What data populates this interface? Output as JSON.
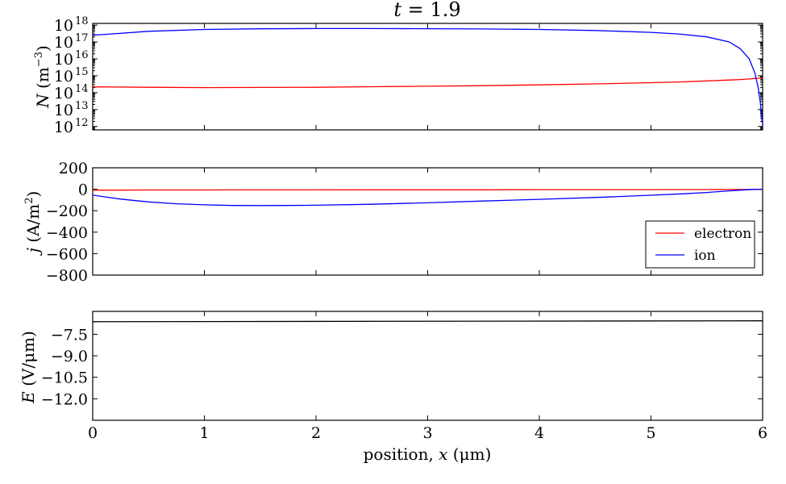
{
  "title": {
    "var": "t",
    "eq": " = ",
    "val": "1.9"
  },
  "xaxis": {
    "label_pre": "position, ",
    "label_var": "x",
    "label_unit": " (μm)",
    "ticks": [
      0,
      1,
      2,
      3,
      4,
      5,
      6
    ],
    "tick_labels": [
      "0",
      "1",
      "2",
      "3",
      "4",
      "5",
      "6"
    ],
    "range": [
      0,
      6
    ]
  },
  "panels": {
    "density": {
      "ylabel_var": "N",
      "ylabel_unit": " (m",
      "ylabel_exp": "−3",
      "ylabel_close": ")",
      "scale": "log",
      "ylim_log10": [
        11.8,
        18.1
      ],
      "tick_exps": [
        12,
        13,
        14,
        15,
        16,
        17,
        18
      ],
      "tick_base": "10",
      "tick_exp_labels": [
        "12",
        "13",
        "14",
        "15",
        "16",
        "17",
        "18"
      ]
    },
    "current": {
      "ylabel_var": "j",
      "ylabel_unit": " (A/m",
      "ylabel_exp": "2",
      "ylabel_close": ")",
      "ylim": [
        -800,
        200
      ],
      "ticks": [
        200,
        0,
        -200,
        -400,
        -600,
        -800
      ],
      "tick_labels": [
        "200",
        "0",
        "−200",
        "−400",
        "−600",
        "−800"
      ],
      "legend": {
        "position": "lower-right",
        "entries": [
          "electron",
          "ion"
        ]
      }
    },
    "field": {
      "ylabel_var": "E",
      "ylabel_unit": " (V/μm)",
      "ylim": [
        -13.5,
        -5.9
      ],
      "ticks": [
        -7.5,
        -9.0,
        -10.5,
        -12.0
      ],
      "tick_labels": [
        "−7.5",
        "−9.0",
        "−10.5",
        "−12.0"
      ]
    }
  },
  "colors": {
    "electron": "#ff0000",
    "ion": "#0000ff",
    "field": "#000000"
  },
  "chart_data": [
    {
      "type": "line",
      "yscale": "log",
      "ylabel": "N (m^-3)",
      "xlim": [
        0,
        6
      ],
      "x": [
        0,
        0.5,
        1,
        1.5,
        2,
        2.5,
        3,
        3.5,
        4,
        4.5,
        5,
        5.25,
        5.5,
        5.7,
        5.8,
        5.88,
        5.93,
        5.96,
        5.98,
        5.99,
        6.0
      ],
      "series": [
        {
          "name": "electron",
          "color": "#ff0000",
          "values": [
            220000000000000.0,
            210000000000000.0,
            200000000000000.0,
            205000000000000.0,
            210000000000000.0,
            225000000000000.0,
            240000000000000.0,
            260000000000000.0,
            290000000000000.0,
            330000000000000.0,
            390000000000000.0,
            430000000000000.0,
            500000000000000.0,
            560000000000000.0,
            600000000000000.0,
            650000000000000.0,
            690000000000000.0,
            710000000000000.0,
            730000000000000.0,
            740000000000000.0,
            750000000000000.0
          ]
        },
        {
          "name": "ion",
          "color": "#0000ff",
          "values": [
            2.5e+17,
            4.3e+17,
            5.5e+17,
            6e+17,
            6.2e+17,
            6.2e+17,
            6.1e+17,
            5.9e+17,
            5.5e+17,
            4.8e+17,
            3.7e+17,
            3e+17,
            2e+17,
            1e+17,
            4e+16,
            1e+16,
            1500000000000000.0,
            200000000000000.0,
            25000000000000.0,
            5000000000000.0,
            1200000000000.0
          ]
        }
      ]
    },
    {
      "type": "line",
      "ylabel": "j (A/m^2)",
      "xlim": [
        0,
        6
      ],
      "ylim": [
        -800,
        200
      ],
      "x": [
        0,
        0.25,
        0.5,
        0.75,
        1,
        1.25,
        1.5,
        1.75,
        2,
        2.5,
        3,
        3.5,
        4,
        4.5,
        5,
        5.3,
        5.5,
        5.7,
        5.85,
        5.95,
        6.0
      ],
      "series": [
        {
          "name": "electron",
          "color": "#ff0000",
          "values": [
            -8,
            -8,
            -7,
            -7,
            -7,
            -6,
            -6,
            -6,
            -6,
            -5,
            -5,
            -5,
            -4,
            -4,
            -4,
            -3,
            -3,
            -2,
            -2,
            -1,
            -1
          ]
        },
        {
          "name": "ion",
          "color": "#0000ff",
          "values": [
            -55,
            -92,
            -118,
            -135,
            -145,
            -151,
            -152,
            -151,
            -149,
            -140,
            -126,
            -110,
            -94,
            -77,
            -56,
            -42,
            -30,
            -15,
            -5,
            -1,
            0
          ]
        }
      ]
    },
    {
      "type": "line",
      "ylabel": "E (V/μm)",
      "xlim": [
        0,
        6
      ],
      "ylim": [
        -13.5,
        -5.9
      ],
      "x": [
        0,
        6
      ],
      "series": [
        {
          "color": "#000000",
          "values": [
            -6.62,
            -6.56
          ]
        }
      ]
    }
  ]
}
